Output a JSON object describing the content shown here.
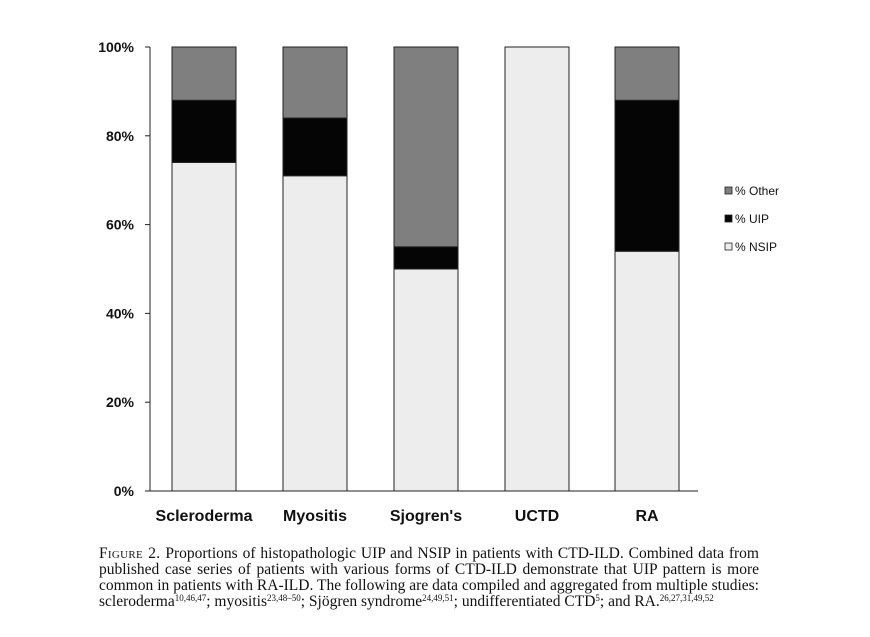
{
  "chart_data": {
    "type": "bar",
    "stacked": true,
    "categories": [
      "Scleroderma",
      "Myositis",
      "Sjogren's",
      "UCTD",
      "RA"
    ],
    "series": [
      {
        "name": "% NSIP",
        "values": [
          74,
          71,
          50,
          100,
          54
        ],
        "color": "#ededed"
      },
      {
        "name": "% UIP",
        "values": [
          14,
          13,
          5,
          0,
          34
        ],
        "color": "#050505"
      },
      {
        "name": "% Other",
        "values": [
          12,
          16,
          45,
          0,
          12
        ],
        "color": "#7f7f7f"
      }
    ],
    "legend_order": [
      "% Other",
      "% UIP",
      "% NSIP"
    ],
    "legend_position": "right",
    "ylim": [
      0,
      100
    ],
    "yticks": [
      0,
      20,
      40,
      60,
      80,
      100
    ],
    "ytick_labels": [
      "0%",
      "20%",
      "40%",
      "60%",
      "80%",
      "100%"
    ],
    "grid": false
  },
  "caption": {
    "figure_label": "Figure 2.",
    "parts": [
      {
        "text": " Proportions of histopathologic UIP and NSIP in patients with CTD-ILD. Combined data from published case series of patients with various forms of CTD-ILD demonstrate that UIP pattern is more common in patients with RA-ILD. The following are data compiled and aggregated from multiple studies: scleroderma"
      },
      {
        "sup": "10,46,47"
      },
      {
        "text": "; myositis"
      },
      {
        "sup": "23,48–50"
      },
      {
        "text": "; Sjögren syndrome"
      },
      {
        "sup": "24,49,51"
      },
      {
        "text": "; undifferentiated CTD"
      },
      {
        "sup": "5"
      },
      {
        "text": "; and RA."
      },
      {
        "sup": "26,27,31,49,52"
      }
    ]
  }
}
